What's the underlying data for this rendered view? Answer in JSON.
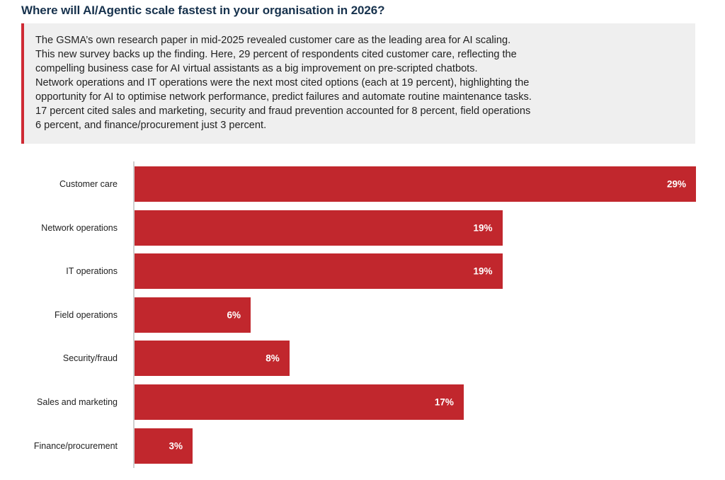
{
  "title": "Where will AI/Agentic scale fastest in your organisation in 2026?",
  "callout": {
    "lines": [
      "The GSMA’s own research paper in mid-2025 revealed customer care as the leading area for AI scaling.",
      "This new survey backs up the finding. Here, 29 percent of respondents cited customer care, reflecting the",
      "compelling business case for AI virtual assistants as a big improvement on pre-scripted chatbots.",
      "Network operations and IT operations were the next most cited options (each at 19 percent), highlighting the",
      "opportunity for AI to optimise network performance, predict failures and automate routine maintenance tasks.",
      "17 percent cited sales and marketing, security and fraud prevention accounted for 8 percent, field operations",
      "6 percent, and finance/procurement just 3 percent."
    ],
    "accent_color": "#cf2a34"
  },
  "chart_data": {
    "type": "bar",
    "orientation": "horizontal",
    "title": "Where will AI/Agentic scale fastest in your organisation in 2026?",
    "xlabel": "",
    "ylabel": "",
    "categories": [
      "Customer care",
      "Network operations",
      "IT operations",
      "Field operations",
      "Security/fraud",
      "Sales and marketing",
      "Finance/procurement"
    ],
    "values": [
      29,
      19,
      19,
      6,
      8,
      17,
      3
    ],
    "value_labels": [
      "29%",
      "19%",
      "19%",
      "6%",
      "8%",
      "17%",
      "3%"
    ],
    "unit": "%",
    "xlim": [
      0,
      29
    ],
    "grid": false,
    "legend": "none",
    "bar_color": "#c1272d"
  }
}
